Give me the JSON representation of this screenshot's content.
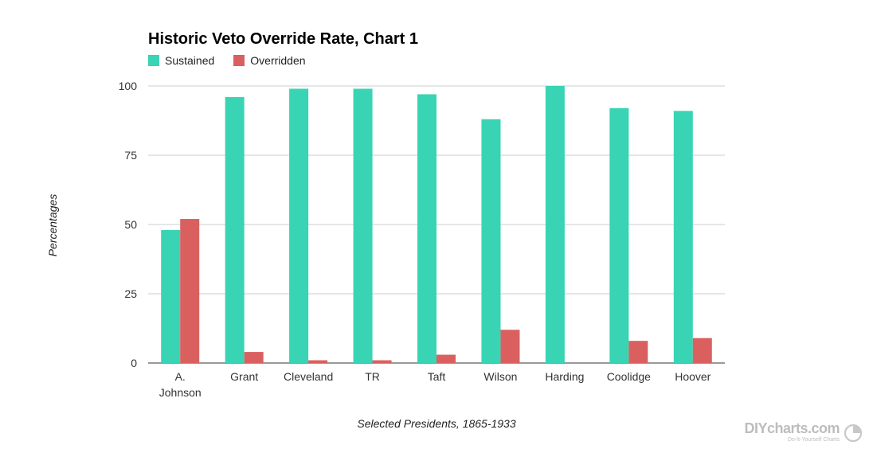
{
  "chart_data": {
    "type": "bar",
    "title": "Historic Veto Override Rate, Chart 1",
    "xlabel": "Selected Presidents, 1865-1933",
    "ylabel": "Percentages",
    "ylim": [
      0,
      100
    ],
    "yticks": [
      "0",
      "25",
      "50",
      "75",
      "100"
    ],
    "grid": true,
    "legend_position": "top-left",
    "categories": [
      [
        "A.",
        "Johnson"
      ],
      [
        "Grant"
      ],
      [
        "Cleveland"
      ],
      [
        "TR"
      ],
      [
        "Taft"
      ],
      [
        "Wilson"
      ],
      [
        "Harding"
      ],
      [
        "Coolidge"
      ],
      [
        "Hoover"
      ]
    ],
    "series": [
      {
        "name": "Sustained",
        "color": "#38d4b4",
        "values": [
          48,
          96,
          99,
          99,
          97,
          88,
          100,
          92,
          91
        ]
      },
      {
        "name": "Overridden",
        "color": "#da6060",
        "values": [
          52,
          4,
          1,
          1,
          3,
          12,
          0,
          8,
          9
        ]
      }
    ]
  },
  "legend": {
    "sustained_label": "Sustained",
    "sustained_color": "#38d4b4",
    "overridden_label": "Overridden",
    "overridden_color": "#da6060"
  },
  "branding": {
    "name": "DIYcharts.com",
    "tagline": "Do-It-Yourself Charts"
  }
}
